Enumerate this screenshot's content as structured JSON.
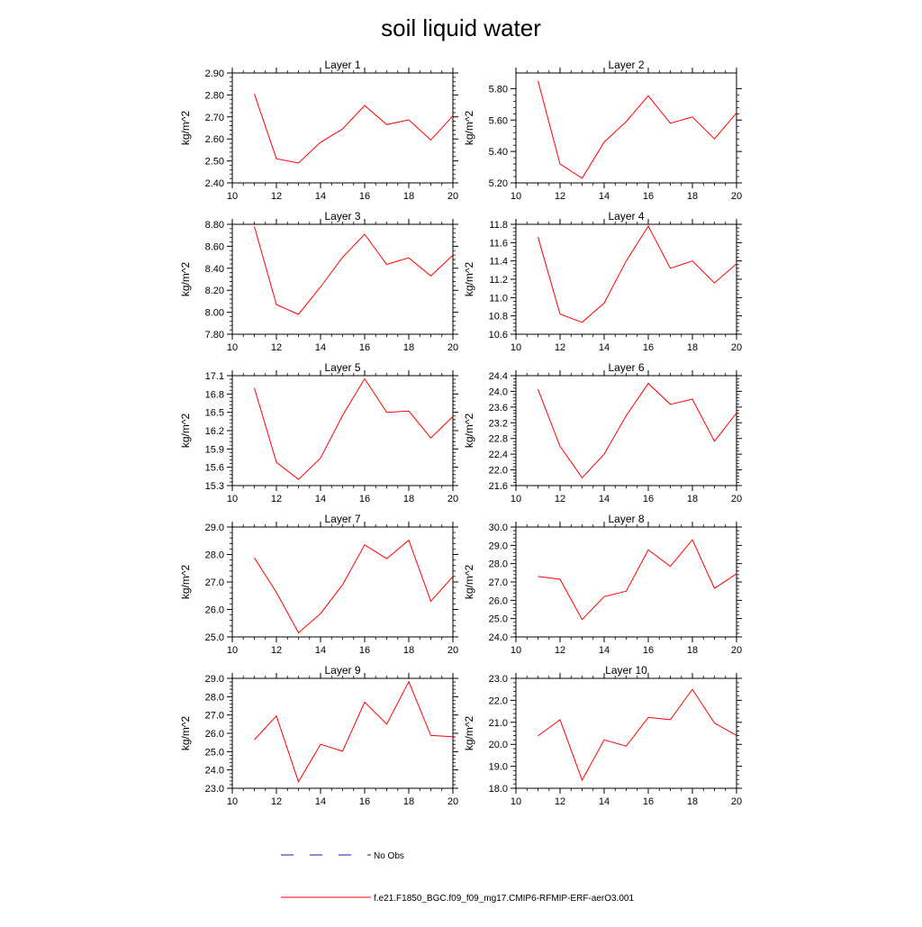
{
  "figure_title": "soil liquid water",
  "colors": {
    "model": "#ff0000",
    "obs": "#1a1aa8"
  },
  "legend": {
    "obs_label": "No Obs",
    "model_label": "f.e21.F1850_BGC.f09_f09_mg17.CMIP6-RFMIP-ERF-aerO3.001"
  },
  "chart_data": [
    {
      "type": "line",
      "title": "Layer 1",
      "ylabel": "kg/m^2",
      "xlim": [
        10,
        20
      ],
      "xticks": [
        10,
        12,
        14,
        16,
        18,
        20
      ],
      "xtick_labels": [
        "10",
        "12",
        "14",
        "16",
        "18",
        "20"
      ],
      "ylim": [
        2.4,
        2.9
      ],
      "yticks": [
        2.4,
        2.5,
        2.6,
        2.7,
        2.8,
        2.9
      ],
      "ytick_labels": [
        "2.40",
        "2.50",
        "2.60",
        "2.70",
        "2.80",
        "2.90"
      ],
      "x": [
        11,
        12,
        13,
        14,
        15,
        16,
        17,
        18,
        19,
        20
      ],
      "y": [
        2.805,
        2.51,
        2.49,
        2.585,
        2.645,
        2.752,
        2.665,
        2.687,
        2.595,
        2.705
      ]
    },
    {
      "type": "line",
      "title": "Layer 2",
      "ylabel": "kg/m^2",
      "xlim": [
        10,
        20
      ],
      "xticks": [
        10,
        12,
        14,
        16,
        18,
        20
      ],
      "xtick_labels": [
        "10",
        "12",
        "14",
        "16",
        "18",
        "20"
      ],
      "ylim": [
        5.2,
        5.9
      ],
      "yticks": [
        5.2,
        5.4,
        5.6,
        5.8
      ],
      "ytick_labels": [
        "5.20",
        "5.40",
        "5.60",
        "5.80"
      ],
      "x": [
        11,
        12,
        13,
        14,
        15,
        16,
        17,
        18,
        19,
        20
      ],
      "y": [
        5.85,
        5.32,
        5.23,
        5.46,
        5.59,
        5.755,
        5.58,
        5.62,
        5.48,
        5.645
      ]
    },
    {
      "type": "line",
      "title": "Layer 3",
      "ylabel": "kg/m^2",
      "xlim": [
        10,
        20
      ],
      "xticks": [
        10,
        12,
        14,
        16,
        18,
        20
      ],
      "xtick_labels": [
        "10",
        "12",
        "14",
        "16",
        "18",
        "20"
      ],
      "ylim": [
        7.8,
        8.8
      ],
      "yticks": [
        7.8,
        8.0,
        8.2,
        8.4,
        8.6,
        8.8
      ],
      "ytick_labels": [
        "7.80",
        "8.00",
        "8.20",
        "8.40",
        "8.60",
        "8.80"
      ],
      "x": [
        11,
        12,
        13,
        14,
        15,
        16,
        17,
        18,
        19,
        20
      ],
      "y": [
        8.78,
        8.07,
        7.98,
        8.23,
        8.5,
        8.71,
        8.435,
        8.495,
        8.33,
        8.52
      ]
    },
    {
      "type": "line",
      "title": "Layer 4",
      "ylabel": "kg/m^2",
      "xlim": [
        10,
        20
      ],
      "xticks": [
        10,
        12,
        14,
        16,
        18,
        20
      ],
      "xtick_labels": [
        "10",
        "12",
        "14",
        "16",
        "18",
        "20"
      ],
      "ylim": [
        10.6,
        11.8
      ],
      "yticks": [
        10.6,
        10.8,
        11.0,
        11.2,
        11.4,
        11.6,
        11.8
      ],
      "ytick_labels": [
        "10.6",
        "10.8",
        "11.0",
        "11.2",
        "11.4",
        "11.6",
        "11.8"
      ],
      "x": [
        11,
        12,
        13,
        14,
        15,
        16,
        17,
        18,
        19,
        20
      ],
      "y": [
        11.66,
        10.82,
        10.73,
        10.94,
        11.4,
        11.78,
        11.32,
        11.4,
        11.16,
        11.37
      ]
    },
    {
      "type": "line",
      "title": "Layer 5",
      "ylabel": "kg/m^2",
      "xlim": [
        10,
        20
      ],
      "xticks": [
        10,
        12,
        14,
        16,
        18,
        20
      ],
      "xtick_labels": [
        "10",
        "12",
        "14",
        "16",
        "18",
        "20"
      ],
      "ylim": [
        15.3,
        17.1
      ],
      "yticks": [
        15.3,
        15.6,
        15.9,
        16.2,
        16.5,
        16.8,
        17.1
      ],
      "ytick_labels": [
        "15.3",
        "15.6",
        "15.9",
        "16.2",
        "16.5",
        "16.8",
        "17.1"
      ],
      "x": [
        11,
        12,
        13,
        14,
        15,
        16,
        17,
        18,
        19,
        20
      ],
      "y": [
        16.9,
        15.68,
        15.4,
        15.75,
        16.45,
        17.05,
        16.5,
        16.52,
        16.08,
        16.43
      ]
    },
    {
      "type": "line",
      "title": "Layer 6",
      "ylabel": "kg/m^2",
      "xlim": [
        10,
        20
      ],
      "xticks": [
        10,
        12,
        14,
        16,
        18,
        20
      ],
      "xtick_labels": [
        "10",
        "12",
        "14",
        "16",
        "18",
        "20"
      ],
      "ylim": [
        21.6,
        24.4
      ],
      "yticks": [
        21.6,
        22.0,
        22.4,
        22.8,
        23.2,
        23.6,
        24.0,
        24.4
      ],
      "ytick_labels": [
        "21.6",
        "22.0",
        "22.4",
        "22.8",
        "23.2",
        "23.6",
        "24.0",
        "24.4"
      ],
      "x": [
        11,
        12,
        13,
        14,
        15,
        16,
        17,
        18,
        19,
        20
      ],
      "y": [
        24.05,
        22.6,
        21.8,
        22.4,
        23.38,
        24.2,
        23.67,
        23.8,
        22.73,
        23.45
      ]
    },
    {
      "type": "line",
      "title": "Layer 7",
      "ylabel": "kg/m^2",
      "xlim": [
        10,
        20
      ],
      "xticks": [
        10,
        12,
        14,
        16,
        18,
        20
      ],
      "xtick_labels": [
        "10",
        "12",
        "14",
        "16",
        "18",
        "20"
      ],
      "ylim": [
        25.0,
        29.0
      ],
      "yticks": [
        25.0,
        26.0,
        27.0,
        28.0,
        29.0
      ],
      "ytick_labels": [
        "25.0",
        "26.0",
        "27.0",
        "28.0",
        "29.0"
      ],
      "x": [
        11,
        12,
        13,
        14,
        15,
        16,
        17,
        18,
        19,
        20
      ],
      "y": [
        27.88,
        26.62,
        25.15,
        25.85,
        26.9,
        28.35,
        27.85,
        28.52,
        26.3,
        27.2
      ]
    },
    {
      "type": "line",
      "title": "Layer 8",
      "ylabel": "kg/m^2",
      "xlim": [
        10,
        20
      ],
      "xticks": [
        10,
        12,
        14,
        16,
        18,
        20
      ],
      "xtick_labels": [
        "10",
        "12",
        "14",
        "16",
        "18",
        "20"
      ],
      "ylim": [
        24.0,
        30.0
      ],
      "yticks": [
        24.0,
        25.0,
        26.0,
        27.0,
        28.0,
        29.0,
        30.0
      ],
      "ytick_labels": [
        "24.0",
        "25.0",
        "26.0",
        "27.0",
        "28.0",
        "29.0",
        "30.0"
      ],
      "x": [
        11,
        12,
        13,
        14,
        15,
        16,
        17,
        18,
        19,
        20
      ],
      "y": [
        27.3,
        27.15,
        24.95,
        26.2,
        26.5,
        28.75,
        27.85,
        29.3,
        26.65,
        27.45
      ]
    },
    {
      "type": "line",
      "title": "Layer 9",
      "ylabel": "kg/m^2",
      "xlim": [
        10,
        20
      ],
      "xticks": [
        10,
        12,
        14,
        16,
        18,
        20
      ],
      "xtick_labels": [
        "10",
        "12",
        "14",
        "16",
        "18",
        "20"
      ],
      "ylim": [
        23.0,
        29.0
      ],
      "yticks": [
        23.0,
        24.0,
        25.0,
        26.0,
        27.0,
        28.0,
        29.0
      ],
      "ytick_labels": [
        "23.0",
        "24.0",
        "25.0",
        "26.0",
        "27.0",
        "28.0",
        "29.0"
      ],
      "x": [
        11,
        12,
        13,
        14,
        15,
        16,
        17,
        18,
        19,
        20
      ],
      "y": [
        25.65,
        26.95,
        23.35,
        25.4,
        25.02,
        27.7,
        26.5,
        28.82,
        25.88,
        25.82
      ]
    },
    {
      "type": "line",
      "title": "Layer 10",
      "ylabel": "kg/m^2",
      "xlim": [
        10,
        20
      ],
      "xticks": [
        10,
        12,
        14,
        16,
        18,
        20
      ],
      "xtick_labels": [
        "10",
        "12",
        "14",
        "16",
        "18",
        "20"
      ],
      "ylim": [
        18.0,
        23.0
      ],
      "yticks": [
        18.0,
        19.0,
        20.0,
        21.0,
        22.0,
        23.0
      ],
      "ytick_labels": [
        "18.0",
        "19.0",
        "20.0",
        "21.0",
        "22.0",
        "23.0"
      ],
      "x": [
        11,
        12,
        13,
        14,
        15,
        16,
        17,
        18,
        19,
        20
      ],
      "y": [
        20.38,
        21.12,
        18.37,
        20.2,
        19.92,
        21.22,
        21.12,
        22.5,
        20.97,
        20.4
      ]
    }
  ]
}
